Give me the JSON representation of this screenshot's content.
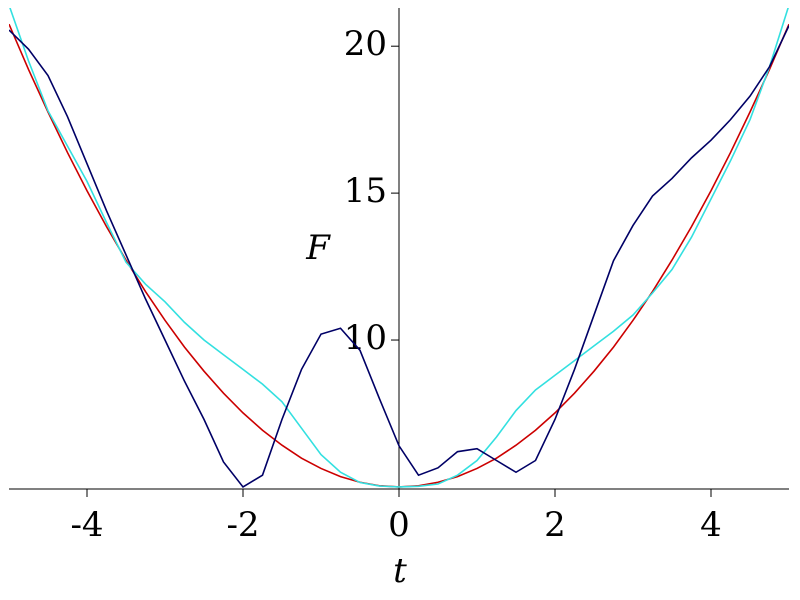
{
  "chart_data": {
    "type": "line",
    "x_label": "t",
    "y_label": "F",
    "x": [
      -5,
      -4.75,
      -4.5,
      -4.25,
      -4,
      -3.75,
      -3.5,
      -3.25,
      -3,
      -2.75,
      -2.5,
      -2.25,
      -2,
      -1.75,
      -1.5,
      -1.25,
      -1,
      -0.75,
      -0.5,
      -0.25,
      0,
      0.25,
      0.5,
      0.75,
      1,
      1.25,
      1.5,
      1.75,
      2,
      2.25,
      2.5,
      2.75,
      3,
      3.25,
      3.5,
      3.75,
      4,
      4.25,
      4.5,
      4.75,
      5
    ],
    "series": [
      {
        "color": "#cc0000",
        "values": [
          20.75,
          19.21,
          17.76,
          16.38,
          15.08,
          13.86,
          12.72,
          11.65,
          10.67,
          9.76,
          8.94,
          8.19,
          7.52,
          6.93,
          6.42,
          5.98,
          5.63,
          5.35,
          5.16,
          5.04,
          5.0,
          5.04,
          5.16,
          5.35,
          5.63,
          5.98,
          6.42,
          6.93,
          7.52,
          8.19,
          8.94,
          9.76,
          10.67,
          11.65,
          12.72,
          13.86,
          15.08,
          16.38,
          17.76,
          19.21,
          20.75
        ]
      },
      {
        "color": "#33e0e0",
        "values": [
          21.4,
          19.5,
          17.8,
          16.6,
          15.4,
          14.0,
          12.65,
          11.9,
          11.3,
          10.6,
          10.0,
          9.5,
          9.0,
          8.5,
          7.9,
          7.0,
          6.1,
          5.5,
          5.15,
          5.03,
          5.0,
          5.02,
          5.1,
          5.4,
          5.9,
          6.7,
          7.6,
          8.3,
          8.8,
          9.3,
          9.8,
          10.3,
          10.85,
          11.6,
          12.4,
          13.5,
          14.8,
          16.1,
          17.5,
          19.3,
          21.4
        ]
      },
      {
        "color": "#000066",
        "values": [
          20.55,
          19.9,
          19.0,
          17.6,
          16.0,
          14.4,
          12.9,
          11.4,
          10.0,
          8.6,
          7.3,
          5.85,
          5.0,
          5.4,
          7.3,
          9.0,
          10.2,
          10.4,
          9.65,
          8.0,
          6.4,
          5.4,
          5.65,
          6.2,
          6.3,
          5.9,
          5.5,
          5.9,
          7.3,
          9.0,
          10.85,
          12.7,
          13.9,
          14.9,
          15.5,
          16.2,
          16.8,
          17.5,
          18.3,
          19.3,
          20.7
        ]
      }
    ],
    "xlim": [
      -5,
      5
    ],
    "ylim": [
      4.93,
      21.3
    ],
    "xticks": [
      -4,
      -2,
      0,
      2,
      4
    ],
    "yticks": [
      10,
      15,
      20
    ]
  }
}
